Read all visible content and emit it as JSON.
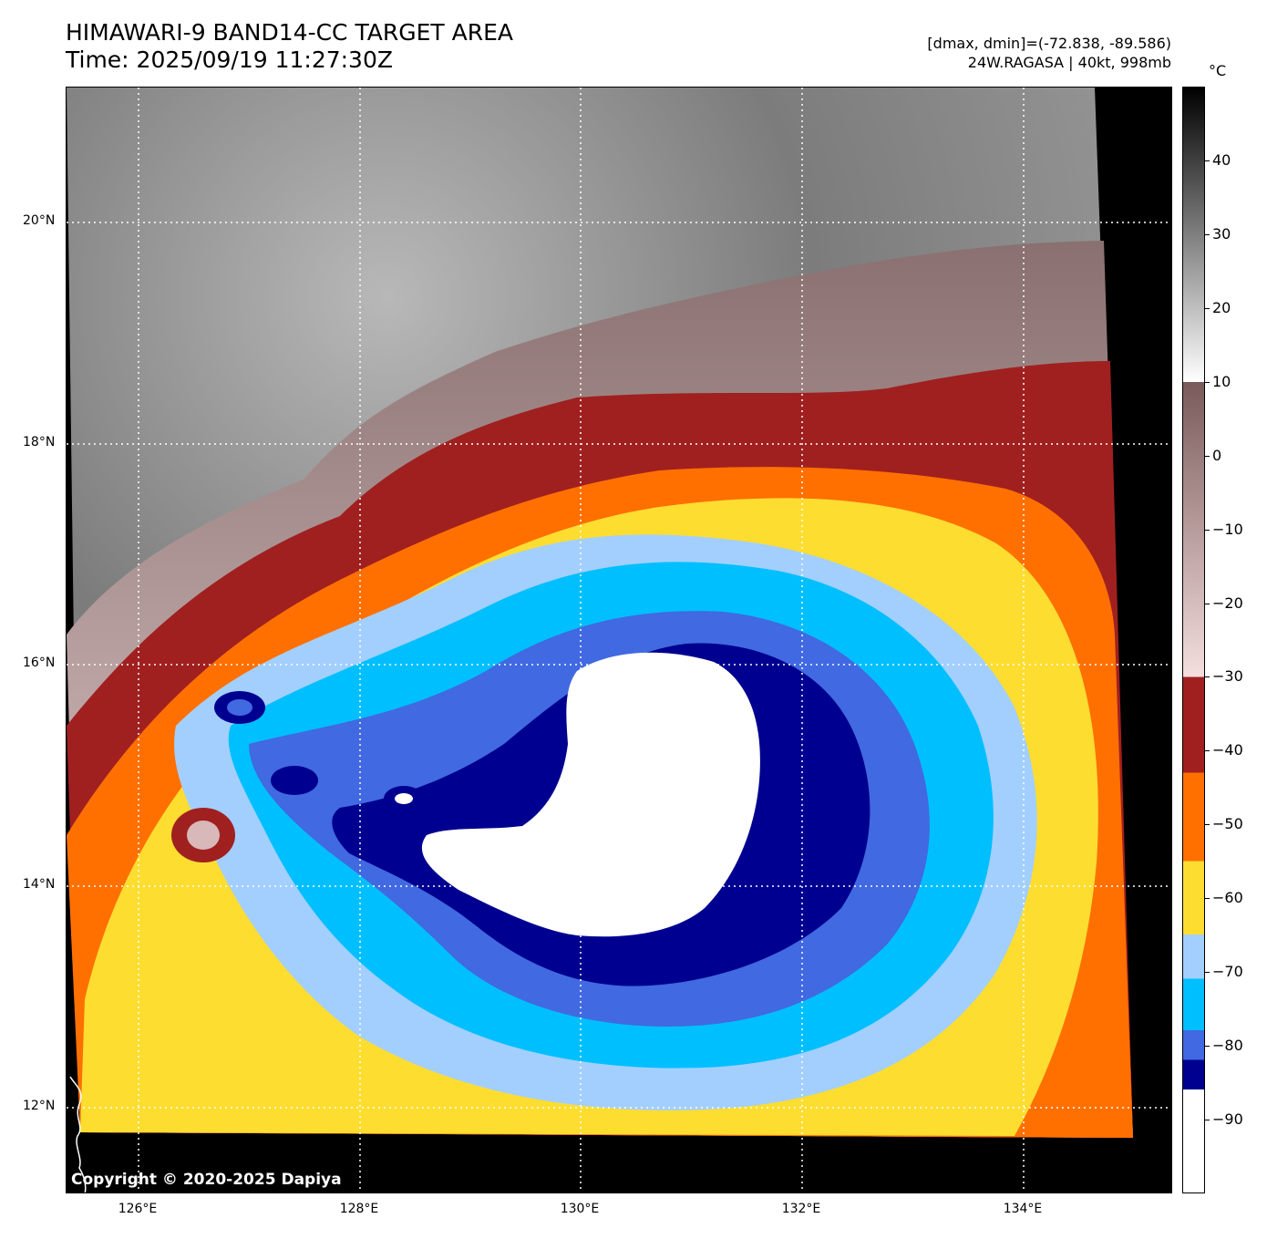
{
  "header": {
    "title_line1": "HIMAWARI-9 BAND14-CC TARGET AREA",
    "title_line2": "Time: 2025/09/19 11:27:30Z",
    "range_text": "[dmax, dmin]=(-72.838, -89.586)",
    "storm_text": "24W.RAGASA | 40kt, 998mb"
  },
  "colorbar": {
    "unit": "°C",
    "tick_labels": [
      "40",
      "30",
      "20",
      "10",
      "0",
      "−10",
      "−20",
      "−30",
      "−40",
      "−50",
      "−60",
      "−70",
      "−80",
      "−90"
    ],
    "bands": [
      {
        "from": 50,
        "to": 10,
        "colors": [
          "#000000",
          "#ffffff"
        ]
      },
      {
        "from": 10,
        "to": -30,
        "colors": [
          "#7a5a5a",
          "#f4dede"
        ]
      },
      {
        "from": -30,
        "to": -43,
        "colors": [
          "#a02020"
        ]
      },
      {
        "from": -43,
        "to": -55,
        "colors": [
          "#ff7000"
        ]
      },
      {
        "from": -55,
        "to": -65,
        "colors": [
          "#fddd30"
        ]
      },
      {
        "from": -65,
        "to": -71,
        "colors": [
          "#a3cfff"
        ]
      },
      {
        "from": -71,
        "to": -78,
        "colors": [
          "#00bfff"
        ]
      },
      {
        "from": -78,
        "to": -82,
        "colors": [
          "#4169e1"
        ]
      },
      {
        "from": -82,
        "to": -86,
        "colors": [
          "#000090"
        ]
      },
      {
        "from": -86,
        "to": -100,
        "colors": [
          "#ffffff"
        ]
      }
    ]
  },
  "axes": {
    "lat_labels": [
      "20°N",
      "18°N",
      "16°N",
      "14°N",
      "12°N"
    ],
    "lon_labels": [
      "126°E",
      "128°E",
      "130°E",
      "132°E",
      "134°E"
    ]
  },
  "map": {
    "storm_name": "24W.RAGASA",
    "colors": {
      "background_cloud": "#8a8a8a",
      "warm_edge": "#d8c0c0",
      "red": "#a02020",
      "orange": "#ff7000",
      "yellow": "#fddd30",
      "light_blue": "#a3cfff",
      "sky_blue": "#00bfff",
      "royal_blue": "#4169e1",
      "navy": "#000090",
      "white_core": "#ffffff",
      "no_data": "#000000"
    }
  },
  "footer": {
    "copyright": "Copyright © 2020-2025 Dapiya"
  }
}
